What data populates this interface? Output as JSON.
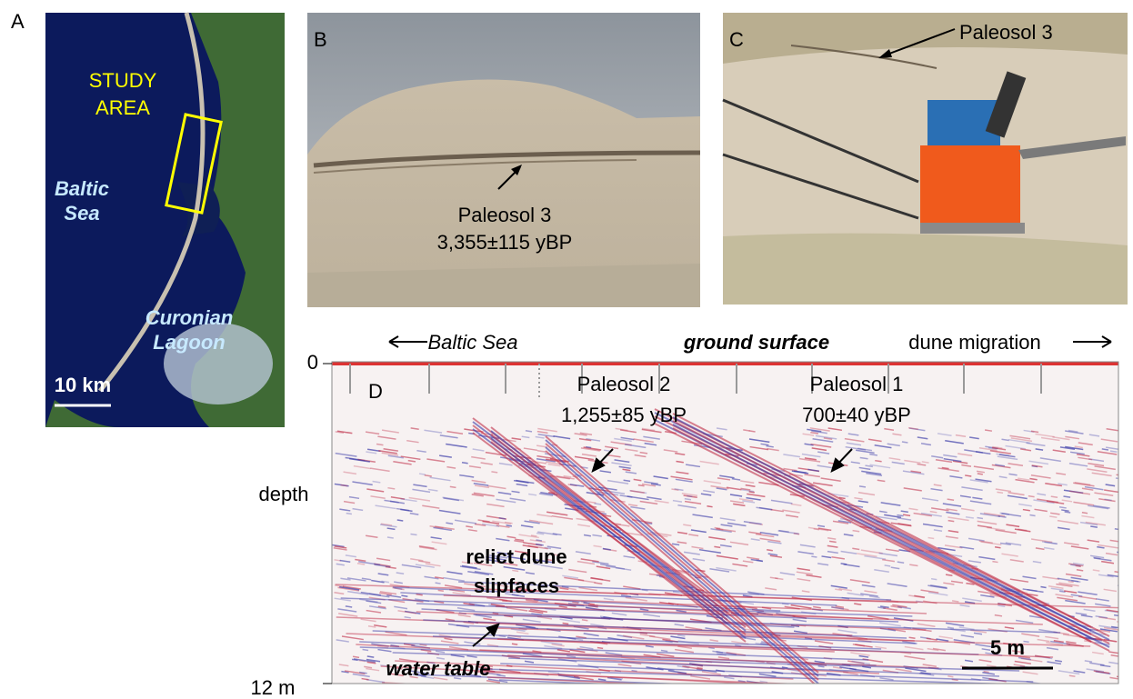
{
  "panel_a": {
    "label": "A",
    "study_area": [
      "STUDY",
      "AREA"
    ],
    "sea": [
      "Baltic",
      "Sea"
    ],
    "lagoon": [
      "Curonian",
      "Lagoon"
    ],
    "scale": "10 km"
  },
  "panel_b": {
    "label": "B",
    "paleosol": "Paleosol 3",
    "age": "3,355±115 yBP"
  },
  "panel_c": {
    "label": "C",
    "paleosol": "Paleosol 3"
  },
  "panel_d": {
    "label": "D",
    "left_direction": "Baltic Sea",
    "surface": "ground surface",
    "right_direction": "dune migration",
    "depth_top": "0",
    "depth_label": "depth",
    "depth_bottom": "12 m",
    "paleosol_2": {
      "name": "Paleosol 2",
      "age": "1,255±85 yBP"
    },
    "paleosol_1": {
      "name": "Paleosol 1",
      "age": "700±40 yBP"
    },
    "slipfaces": [
      "relict dune",
      "slipfaces"
    ],
    "water_table": "water table",
    "scale": "5 m"
  }
}
